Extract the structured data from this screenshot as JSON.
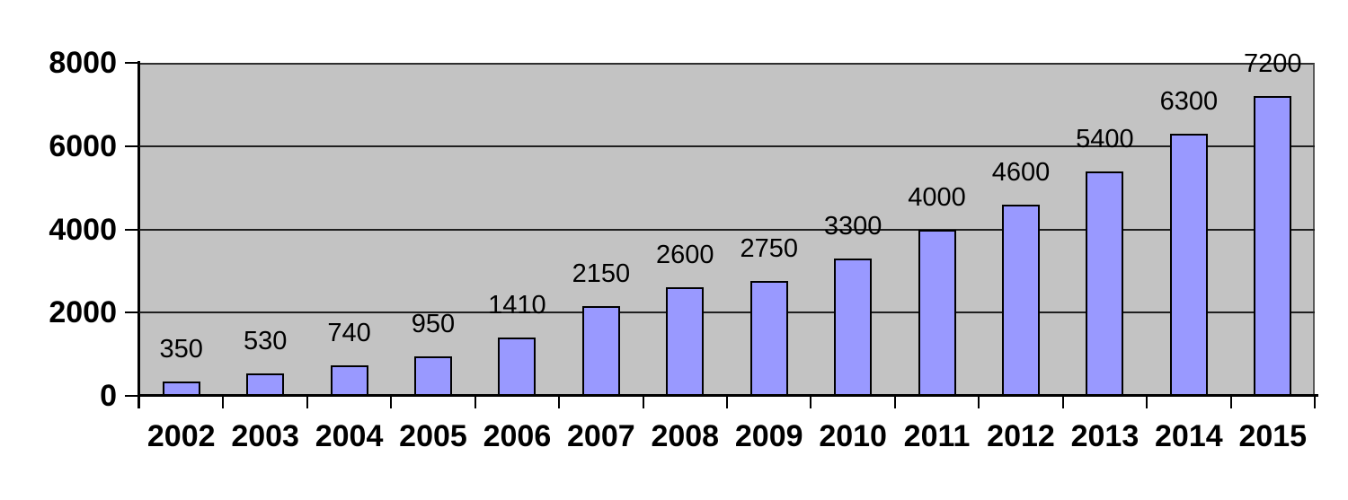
{
  "chart_data": {
    "type": "bar",
    "title": "",
    "xlabel": "",
    "ylabel": "",
    "categories": [
      "2002",
      "2003",
      "2004",
      "2005",
      "2006",
      "2007",
      "2008",
      "2009",
      "2010",
      "2011",
      "2012",
      "2013",
      "2014",
      "2015"
    ],
    "values": [
      350,
      530,
      740,
      950,
      1410,
      2150,
      2600,
      2750,
      3300,
      4000,
      4600,
      5400,
      6300,
      7200
    ],
    "data_labels": [
      "350",
      "530",
      "740",
      "950",
      "1410",
      "2150",
      "2600",
      "2750",
      "3300",
      "4000",
      "4600",
      "5400",
      "6300",
      "7200"
    ],
    "ylim": [
      0,
      8000
    ],
    "yticks": [
      0,
      2000,
      4000,
      6000,
      8000
    ],
    "ytick_labels": [
      "0",
      "2000",
      "4000",
      "6000",
      "8000"
    ],
    "gridlines": [
      2000,
      4000,
      6000
    ],
    "grid": "horizontal",
    "legend": false,
    "bar_color": "#9999ff",
    "bar_border_color": "#000000",
    "plot_background_color": "#c3c3c3",
    "gridline_color": "#1f1f1f",
    "axis_color": "#000000",
    "label_color": "#000000"
  }
}
